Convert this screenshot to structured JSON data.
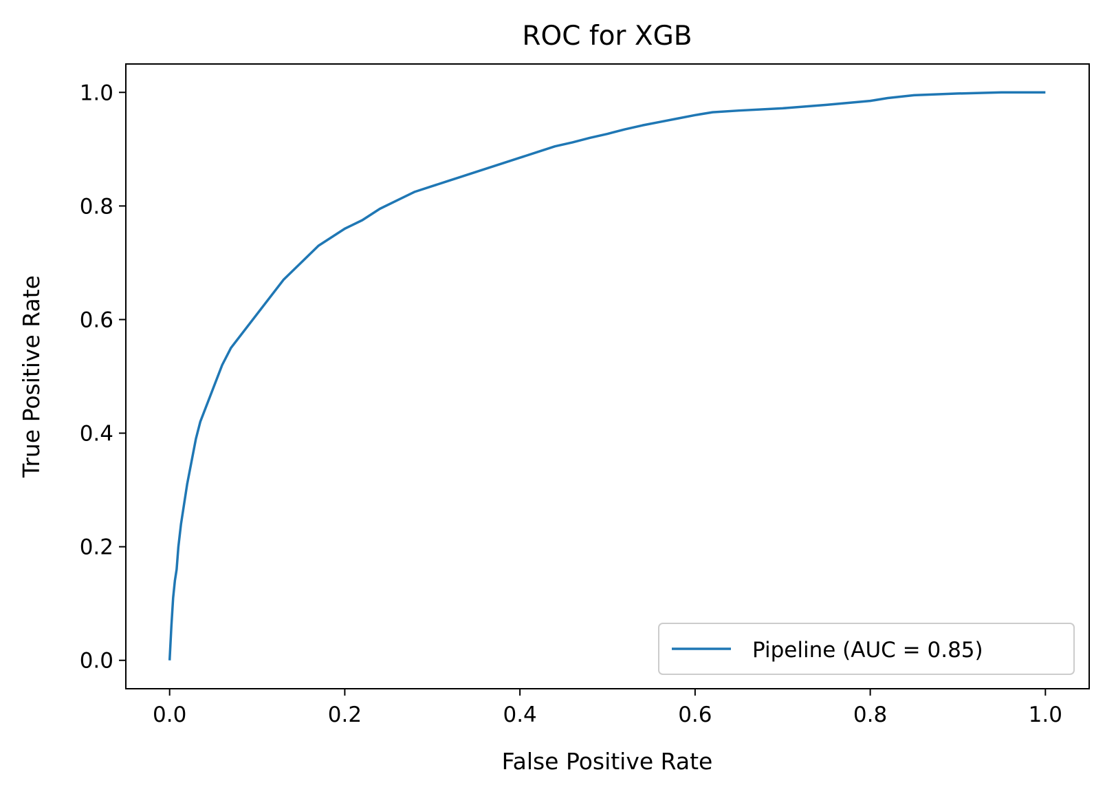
{
  "chart_data": {
    "type": "line",
    "title": "ROC for XGB",
    "xlabel": "False Positive Rate",
    "ylabel": "True Positive Rate",
    "xlim": [
      -0.05,
      1.05
    ],
    "ylim": [
      -0.05,
      1.05
    ],
    "x_ticks": [
      0.0,
      0.2,
      0.4,
      0.6,
      0.8,
      1.0
    ],
    "y_ticks": [
      0.0,
      0.2,
      0.4,
      0.6,
      0.8,
      1.0
    ],
    "x_tick_labels": [
      "0.0",
      "0.2",
      "0.4",
      "0.6",
      "0.8",
      "1.0"
    ],
    "y_tick_labels": [
      "0.0",
      "0.2",
      "0.4",
      "0.6",
      "0.8",
      "1.0"
    ],
    "grid": false,
    "legend_position": "lower-right",
    "series": [
      {
        "name": "Pipeline (AUC = 0.85)",
        "color": "#1f77b4",
        "x": [
          0.0,
          0.002,
          0.004,
          0.006,
          0.008,
          0.01,
          0.013,
          0.016,
          0.02,
          0.025,
          0.03,
          0.035,
          0.04,
          0.045,
          0.05,
          0.055,
          0.06,
          0.07,
          0.08,
          0.09,
          0.1,
          0.11,
          0.12,
          0.13,
          0.14,
          0.15,
          0.16,
          0.17,
          0.18,
          0.19,
          0.2,
          0.22,
          0.24,
          0.26,
          0.28,
          0.3,
          0.32,
          0.34,
          0.36,
          0.38,
          0.4,
          0.42,
          0.44,
          0.46,
          0.48,
          0.5,
          0.52,
          0.54,
          0.56,
          0.58,
          0.6,
          0.62,
          0.65,
          0.7,
          0.75,
          0.8,
          0.82,
          0.85,
          0.9,
          0.95,
          1.0
        ],
        "y": [
          0.0,
          0.06,
          0.11,
          0.14,
          0.16,
          0.2,
          0.24,
          0.27,
          0.31,
          0.35,
          0.39,
          0.42,
          0.44,
          0.46,
          0.48,
          0.5,
          0.52,
          0.55,
          0.57,
          0.59,
          0.61,
          0.63,
          0.65,
          0.67,
          0.685,
          0.7,
          0.715,
          0.73,
          0.74,
          0.75,
          0.76,
          0.775,
          0.795,
          0.81,
          0.825,
          0.835,
          0.845,
          0.855,
          0.865,
          0.875,
          0.885,
          0.895,
          0.905,
          0.912,
          0.92,
          0.927,
          0.935,
          0.942,
          0.948,
          0.954,
          0.96,
          0.965,
          0.968,
          0.972,
          0.978,
          0.985,
          0.99,
          0.995,
          0.998,
          1.0,
          1.0
        ]
      }
    ]
  }
}
